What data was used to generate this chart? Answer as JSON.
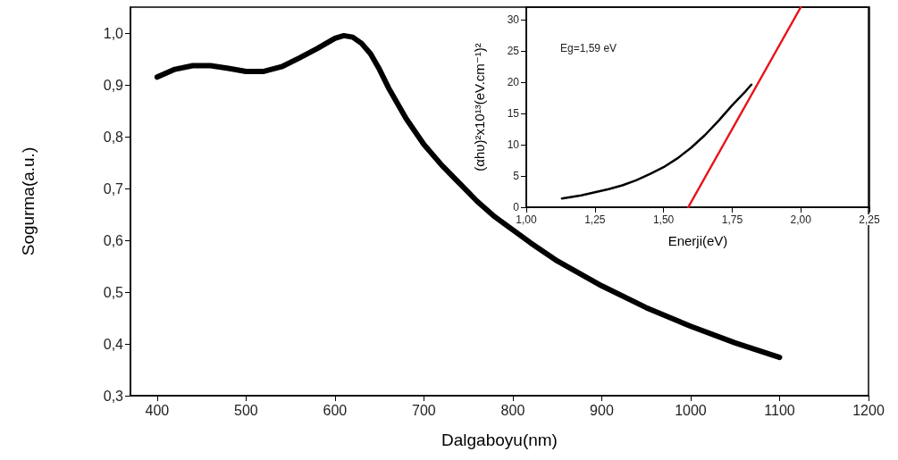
{
  "chart_data": [
    {
      "type": "line",
      "xlabel": "Dalgaboyu(nm)",
      "ylabel": "Sogurma(a.u.)",
      "xlim": [
        370,
        1200
      ],
      "ylim": [
        0.3,
        1.05
      ],
      "xticks": [
        400,
        500,
        600,
        700,
        800,
        900,
        1000,
        1100,
        1200
      ],
      "yticks": [
        {
          "value": 0.3,
          "label": "0,3"
        },
        {
          "value": 0.4,
          "label": "0,4"
        },
        {
          "value": 0.5,
          "label": "0,5"
        },
        {
          "value": 0.6,
          "label": "0,6"
        },
        {
          "value": 0.7,
          "label": "0,7"
        },
        {
          "value": 0.8,
          "label": "0,8"
        },
        {
          "value": 0.9,
          "label": "0,9"
        },
        {
          "value": 1.0,
          "label": "1,0"
        }
      ],
      "grid": false,
      "marker": "none",
      "line_style": "solid",
      "series": [
        {
          "color": "#000000",
          "x": [
            400,
            420,
            440,
            460,
            480,
            500,
            520,
            540,
            560,
            580,
            600,
            610,
            620,
            630,
            640,
            650,
            660,
            680,
            700,
            720,
            740,
            760,
            780,
            800,
            820,
            850,
            900,
            950,
            1000,
            1050,
            1100
          ],
          "values": [
            0.915,
            0.93,
            0.937,
            0.937,
            0.932,
            0.926,
            0.926,
            0.935,
            0.952,
            0.97,
            0.99,
            0.995,
            0.992,
            0.98,
            0.96,
            0.93,
            0.895,
            0.835,
            0.785,
            0.745,
            0.71,
            0.675,
            0.645,
            0.62,
            0.595,
            0.56,
            0.512,
            0.47,
            0.434,
            0.402,
            0.374
          ]
        }
      ]
    },
    {
      "type": "line",
      "xlabel": "Enerji(eV)",
      "ylabel": "(αhυ)²x10¹³(eV.cm⁻¹)²",
      "xlim": [
        1.0,
        2.25
      ],
      "ylim": [
        0,
        32
      ],
      "xticks": [
        {
          "value": 1.0,
          "label": "1,00"
        },
        {
          "value": 1.25,
          "label": "1,25"
        },
        {
          "value": 1.5,
          "label": "1,50"
        },
        {
          "value": 1.75,
          "label": "1,75"
        },
        {
          "value": 2.0,
          "label": "2,00"
        },
        {
          "value": 2.25,
          "label": "2,25"
        }
      ],
      "yticks": [
        0,
        5,
        10,
        15,
        20,
        25,
        30
      ],
      "annotations": [
        "Eg=1,59 eV"
      ],
      "grid": false,
      "marker": "none",
      "line_style": "solid",
      "series": [
        {
          "color": "#000000",
          "x": [
            1.13,
            1.2,
            1.25,
            1.3,
            1.35,
            1.4,
            1.45,
            1.5,
            1.55,
            1.6,
            1.65,
            1.7,
            1.75,
            1.8,
            1.82
          ],
          "values": [
            1.4,
            1.9,
            2.4,
            2.9,
            3.5,
            4.3,
            5.3,
            6.4,
            7.8,
            9.5,
            11.5,
            13.8,
            16.3,
            18.6,
            19.6
          ]
        },
        {
          "color": "#e8141a",
          "x": [
            1.59,
            2.0
          ],
          "values": [
            0,
            32
          ]
        }
      ]
    }
  ]
}
